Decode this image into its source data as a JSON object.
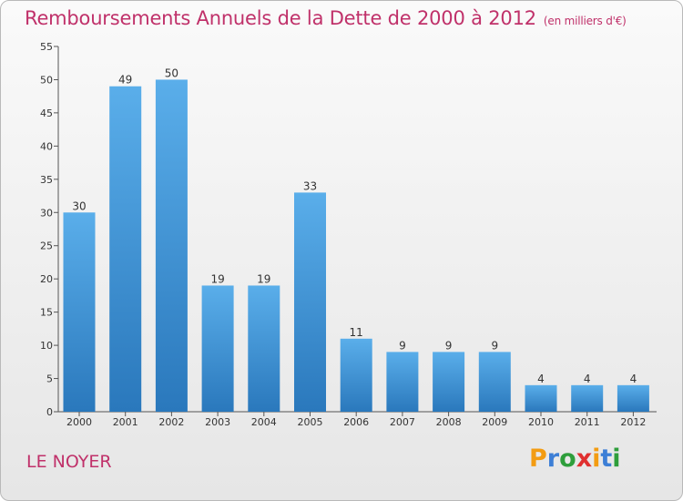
{
  "title": "Remboursements Annuels de la Dette de 2000 à 2012",
  "subtitle": "(en milliers d'€)",
  "commune": "LE NOYER",
  "logo": {
    "letters": [
      "P",
      "r",
      "o",
      "x",
      "i",
      "t",
      "i"
    ],
    "colors": [
      "#f39c12",
      "#3d7fd6",
      "#2e9e3b",
      "#e02f2f",
      "#f39c12",
      "#3d7fd6",
      "#2e9e3b"
    ]
  },
  "colors": {
    "title": "#c0316a",
    "bar_top": "#5aaeea",
    "bar_bottom": "#2a78bc"
  },
  "chart_data": {
    "type": "bar",
    "categories": [
      "2000",
      "2001",
      "2002",
      "2003",
      "2004",
      "2005",
      "2006",
      "2007",
      "2008",
      "2009",
      "2010",
      "2011",
      "2012"
    ],
    "values": [
      30,
      49,
      50,
      19,
      19,
      33,
      11,
      9,
      9,
      9,
      4,
      4,
      4
    ],
    "ylim": [
      0,
      55
    ],
    "yticks": [
      0,
      5,
      10,
      15,
      20,
      25,
      30,
      35,
      40,
      45,
      50,
      55
    ],
    "grid": false
  }
}
